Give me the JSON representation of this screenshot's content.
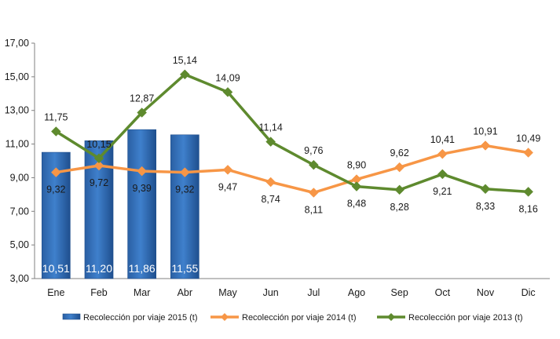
{
  "chart_data": {
    "type": "bar",
    "categories": [
      "Ene",
      "Feb",
      "Mar",
      "Abr",
      "May",
      "Jun",
      "Jul",
      "Ago",
      "Sep",
      "Oct",
      "Nov",
      "Dic"
    ],
    "ylim": [
      3,
      17
    ],
    "yticks": [
      "3,00",
      "5,00",
      "7,00",
      "9,00",
      "11,00",
      "13,00",
      "15,00",
      "17,00"
    ],
    "grid": false,
    "legend_position": "bottom",
    "series": [
      {
        "name": "Recolección por viaje 2015 (t)",
        "type": "bar",
        "color": "#2f6bb5",
        "values": [
          10.51,
          11.2,
          11.86,
          11.55,
          null,
          null,
          null,
          null,
          null,
          null,
          null,
          null
        ],
        "labels": [
          "10,51",
          "11,20",
          "11,86",
          "11,55"
        ]
      },
      {
        "name": "Recolección por viaje 2014 (t)",
        "type": "line",
        "color": "#f79646",
        "values": [
          9.32,
          9.72,
          9.39,
          9.32,
          9.47,
          8.74,
          8.11,
          8.9,
          9.62,
          10.41,
          10.91,
          10.49
        ],
        "labels": [
          "9,32",
          "9,72",
          "9,39",
          "9,32",
          "9,47",
          "8,74",
          "8,11",
          "8,90",
          "9,62",
          "10,41",
          "10,91",
          "10,49"
        ]
      },
      {
        "name": "Recolección por viaje 2013 (t)",
        "type": "line",
        "color": "#5e8a2e",
        "values": [
          11.75,
          10.15,
          12.87,
          15.14,
          14.09,
          11.14,
          9.76,
          8.48,
          8.28,
          9.21,
          8.33,
          8.16
        ],
        "labels": [
          "11,75",
          "10,15",
          "12,87",
          "15,14",
          "14,09",
          "11,14",
          "9,76",
          "8,48",
          "8,28",
          "9,21",
          "8,33",
          "8,16"
        ]
      }
    ]
  }
}
